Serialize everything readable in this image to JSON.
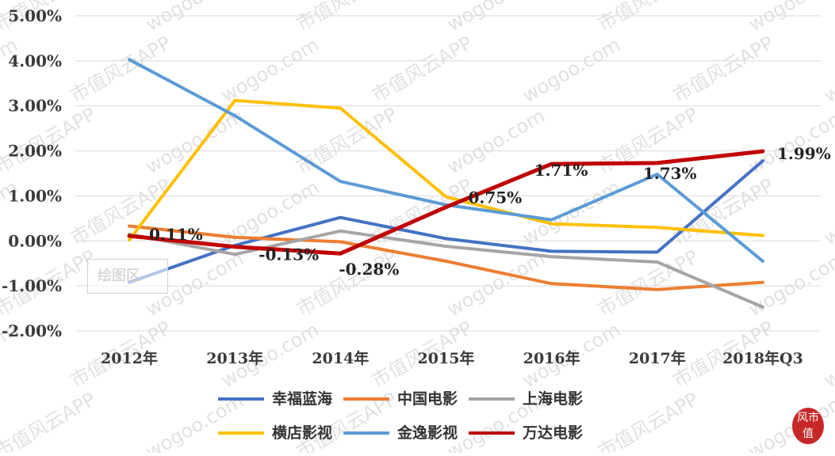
{
  "chart_data": {
    "type": "line",
    "title": "",
    "xlabel": "",
    "ylabel": "",
    "categories": [
      "2012年",
      "2013年",
      "2014年",
      "2015年",
      "2016年",
      "2017年",
      "2018年Q3"
    ],
    "ylim": [
      -2.0,
      5.0
    ],
    "yticks": [
      "-2.00%",
      "-1.00%",
      "0.00%",
      "1.00%",
      "2.00%",
      "3.00%",
      "4.00%",
      "5.00%"
    ],
    "grid": true,
    "legend_position": "bottom",
    "series": [
      {
        "name": "幸福蓝海",
        "color": "#4472C4",
        "values": [
          -0.92,
          -0.1,
          0.52,
          0.05,
          -0.23,
          -0.25,
          1.78
        ]
      },
      {
        "name": "中国电影",
        "color": "#ED7D31",
        "values": [
          0.33,
          0.08,
          -0.02,
          -0.45,
          -0.95,
          -1.08,
          -0.92
        ]
      },
      {
        "name": "上海电影",
        "color": "#A5A5A5",
        "values": [
          0.15,
          -0.3,
          0.22,
          -0.12,
          -0.35,
          -0.47,
          -1.47
        ]
      },
      {
        "name": "横店影视",
        "color": "#FFC000",
        "values": [
          0.02,
          3.12,
          2.95,
          0.98,
          0.38,
          0.3,
          0.12
        ]
      },
      {
        "name": "金逸影视",
        "color": "#5B9BD5",
        "values": [
          4.03,
          2.78,
          1.32,
          0.8,
          0.47,
          1.48,
          -0.45
        ]
      },
      {
        "name": "万达电影",
        "color": "#C00000",
        "values": [
          0.11,
          -0.13,
          -0.28,
          0.75,
          1.71,
          1.73,
          1.99
        ]
      }
    ],
    "data_labels": [
      {
        "series": "万达电影",
        "index": 0,
        "text": "0.11%"
      },
      {
        "series": "万达电影",
        "index": 1,
        "text": "-0.13%"
      },
      {
        "series": "万达电影",
        "index": 2,
        "text": "-0.28%"
      },
      {
        "series": "万达电影",
        "index": 3,
        "text": "0.75%"
      },
      {
        "series": "万达电影",
        "index": 4,
        "text": "1.71%"
      },
      {
        "series": "万达电影",
        "index": 5,
        "text": "1.73%"
      },
      {
        "series": "万达电影",
        "index": 6,
        "text": "1.99%"
      }
    ]
  },
  "watermark": {
    "texts": [
      "wogoo.com",
      "市值风云APP"
    ],
    "stamp": "绘图区",
    "logo": "风市值"
  },
  "colors": {
    "grid": "#d9d9d9",
    "watermark": "#bdbdbd"
  }
}
